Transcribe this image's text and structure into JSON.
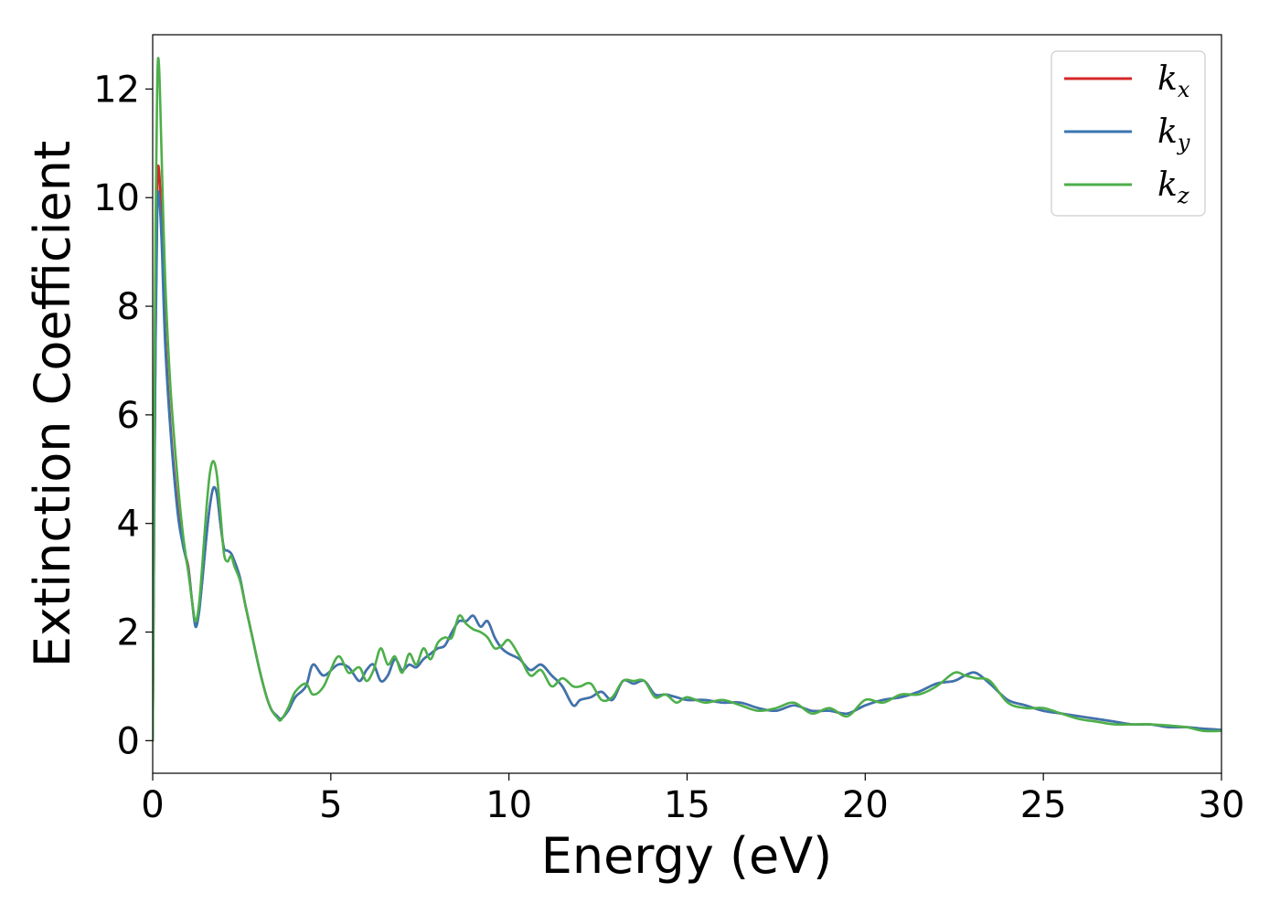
{
  "chart_data": {
    "type": "line",
    "xlabel": "Energy (eV)",
    "ylabel": "Extinction Coefficient",
    "xlim": [
      0,
      30
    ],
    "ylim": [
      -0.6,
      13.0
    ],
    "xticks": [
      0,
      5,
      10,
      15,
      20,
      25,
      30
    ],
    "xtick_labels": [
      "0",
      "5",
      "10",
      "15",
      "20",
      "25",
      "30"
    ],
    "yticks": [
      0,
      2,
      4,
      6,
      8,
      10,
      12
    ],
    "ytick_labels": [
      "0",
      "2",
      "4",
      "6",
      "8",
      "10",
      "12"
    ],
    "grid": false,
    "legend_position": "top-right",
    "series": [
      {
        "key": "kx",
        "name": "k",
        "subscript": "x",
        "color": "#d62728",
        "x": [
          0,
          0.03,
          0.08,
          0.13,
          0.18,
          0.25,
          0.35,
          0.5,
          0.7,
          0.85,
          1.0,
          1.1,
          1.2,
          1.3,
          1.4,
          1.5,
          1.6,
          1.7,
          1.8,
          1.9,
          2.0,
          2.1,
          2.2,
          2.3,
          2.45,
          2.6,
          2.8,
          3.0,
          3.2,
          3.35,
          3.5,
          3.6,
          3.8,
          4.0,
          4.3,
          4.5,
          4.8,
          5.2,
          5.5,
          5.8,
          6.0,
          6.2,
          6.4,
          6.6,
          6.8,
          7.0,
          7.2,
          7.4,
          7.6,
          7.8,
          8.0,
          8.2,
          8.4,
          8.6,
          8.8,
          9.0,
          9.2,
          9.4,
          9.6,
          9.8,
          10.0,
          10.3,
          10.6,
          10.9,
          11.2,
          11.5,
          11.8,
          12.0,
          12.3,
          12.6,
          12.9,
          13.2,
          13.5,
          13.8,
          14.1,
          14.4,
          14.7,
          15.0,
          15.5,
          16.0,
          16.5,
          17.0,
          17.5,
          18.0,
          18.5,
          19.0,
          19.5,
          20.0,
          20.5,
          21.0,
          21.5,
          22.0,
          22.5,
          22.8,
          23.1,
          23.5,
          24.0,
          24.5,
          25.0,
          25.5,
          26.0,
          26.5,
          27.0,
          27.5,
          28.0,
          28.5,
          29.0,
          29.5,
          30.0
        ],
        "values": [
          0,
          3.0,
          7.5,
          10.2,
          10.5,
          9.5,
          7.5,
          5.8,
          4.3,
          3.6,
          3.2,
          2.6,
          2.15,
          2.4,
          3.0,
          3.7,
          4.3,
          4.65,
          4.55,
          4.0,
          3.55,
          3.5,
          3.45,
          3.3,
          3.0,
          2.5,
          1.9,
          1.3,
          0.8,
          0.55,
          0.45,
          0.4,
          0.55,
          0.8,
          1.0,
          1.4,
          1.2,
          1.4,
          1.35,
          1.1,
          1.3,
          1.4,
          1.1,
          1.2,
          1.5,
          1.3,
          1.4,
          1.35,
          1.5,
          1.6,
          1.7,
          1.75,
          2.0,
          2.2,
          2.2,
          2.3,
          2.1,
          2.2,
          1.9,
          1.7,
          1.6,
          1.5,
          1.3,
          1.4,
          1.2,
          1.0,
          0.65,
          0.75,
          0.8,
          0.9,
          0.75,
          1.1,
          1.05,
          1.1,
          0.85,
          0.85,
          0.8,
          0.75,
          0.75,
          0.7,
          0.7,
          0.6,
          0.55,
          0.65,
          0.55,
          0.55,
          0.5,
          0.65,
          0.75,
          0.8,
          0.9,
          1.05,
          1.1,
          1.2,
          1.25,
          1.05,
          0.75,
          0.65,
          0.55,
          0.5,
          0.45,
          0.4,
          0.35,
          0.3,
          0.3,
          0.25,
          0.25,
          0.22,
          0.2
        ]
      },
      {
        "key": "ky",
        "name": "k",
        "subscript": "y",
        "color": "#3a75b0",
        "x": [
          0,
          0.03,
          0.08,
          0.13,
          0.18,
          0.25,
          0.35,
          0.5,
          0.7,
          0.85,
          1.0,
          1.1,
          1.2,
          1.3,
          1.4,
          1.5,
          1.6,
          1.7,
          1.8,
          1.9,
          2.0,
          2.1,
          2.2,
          2.3,
          2.45,
          2.6,
          2.8,
          3.0,
          3.2,
          3.35,
          3.5,
          3.6,
          3.8,
          4.0,
          4.3,
          4.5,
          4.8,
          5.2,
          5.5,
          5.8,
          6.0,
          6.2,
          6.4,
          6.6,
          6.8,
          7.0,
          7.2,
          7.4,
          7.6,
          7.8,
          8.0,
          8.2,
          8.4,
          8.6,
          8.8,
          9.0,
          9.2,
          9.4,
          9.6,
          9.8,
          10.0,
          10.3,
          10.6,
          10.9,
          11.2,
          11.5,
          11.8,
          12.0,
          12.3,
          12.6,
          12.9,
          13.2,
          13.5,
          13.8,
          14.1,
          14.4,
          14.7,
          15.0,
          15.5,
          16.0,
          16.5,
          17.0,
          17.5,
          18.0,
          18.5,
          19.0,
          19.5,
          20.0,
          20.5,
          21.0,
          21.5,
          22.0,
          22.5,
          22.8,
          23.1,
          23.5,
          24.0,
          24.5,
          25.0,
          25.5,
          26.0,
          26.5,
          27.0,
          27.5,
          28.0,
          28.5,
          29.0,
          29.5,
          30.0
        ],
        "values": [
          0,
          2.8,
          7.2,
          9.8,
          10.0,
          9.2,
          7.3,
          5.7,
          4.2,
          3.6,
          3.15,
          2.6,
          2.1,
          2.35,
          3.0,
          3.7,
          4.3,
          4.65,
          4.55,
          4.0,
          3.55,
          3.5,
          3.45,
          3.3,
          3.0,
          2.5,
          1.9,
          1.3,
          0.8,
          0.55,
          0.45,
          0.4,
          0.55,
          0.8,
          1.0,
          1.4,
          1.2,
          1.4,
          1.35,
          1.1,
          1.3,
          1.4,
          1.1,
          1.2,
          1.5,
          1.3,
          1.4,
          1.35,
          1.5,
          1.6,
          1.7,
          1.75,
          2.0,
          2.2,
          2.2,
          2.3,
          2.1,
          2.2,
          1.9,
          1.7,
          1.6,
          1.5,
          1.3,
          1.4,
          1.2,
          1.0,
          0.65,
          0.75,
          0.8,
          0.9,
          0.75,
          1.1,
          1.05,
          1.1,
          0.85,
          0.85,
          0.8,
          0.75,
          0.75,
          0.7,
          0.7,
          0.6,
          0.55,
          0.65,
          0.55,
          0.55,
          0.5,
          0.65,
          0.75,
          0.8,
          0.9,
          1.05,
          1.1,
          1.2,
          1.25,
          1.05,
          0.75,
          0.65,
          0.55,
          0.5,
          0.45,
          0.4,
          0.35,
          0.3,
          0.3,
          0.25,
          0.25,
          0.22,
          0.2
        ]
      },
      {
        "key": "kz",
        "name": "k",
        "subscript": "z",
        "color": "#4daf4a",
        "x": [
          0,
          0.03,
          0.08,
          0.13,
          0.18,
          0.25,
          0.35,
          0.5,
          0.7,
          0.85,
          1.0,
          1.1,
          1.2,
          1.3,
          1.4,
          1.5,
          1.6,
          1.7,
          1.8,
          1.9,
          2.0,
          2.1,
          2.2,
          2.3,
          2.45,
          2.6,
          2.8,
          3.0,
          3.2,
          3.35,
          3.5,
          3.6,
          3.8,
          4.0,
          4.3,
          4.5,
          4.8,
          5.2,
          5.5,
          5.8,
          6.0,
          6.2,
          6.4,
          6.6,
          6.8,
          7.0,
          7.2,
          7.4,
          7.6,
          7.8,
          8.0,
          8.2,
          8.4,
          8.6,
          8.8,
          9.0,
          9.2,
          9.4,
          9.6,
          9.8,
          10.0,
          10.3,
          10.6,
          10.9,
          11.2,
          11.5,
          11.8,
          12.0,
          12.3,
          12.6,
          12.9,
          13.2,
          13.5,
          13.8,
          14.1,
          14.4,
          14.7,
          15.0,
          15.5,
          16.0,
          16.5,
          17.0,
          17.5,
          18.0,
          18.5,
          19.0,
          19.5,
          20.0,
          20.5,
          21.0,
          21.5,
          22.0,
          22.5,
          22.8,
          23.1,
          23.5,
          24.0,
          24.5,
          25.0,
          25.5,
          26.0,
          26.5,
          27.0,
          27.5,
          28.0,
          28.5,
          29.0,
          29.5,
          30.0
        ],
        "values": [
          0,
          4.0,
          9.5,
          12.2,
          12.4,
          10.8,
          8.5,
          6.5,
          4.8,
          3.8,
          3.1,
          2.6,
          2.2,
          2.5,
          3.3,
          4.2,
          4.9,
          5.15,
          4.9,
          4.2,
          3.45,
          3.3,
          3.4,
          3.2,
          2.95,
          2.5,
          1.9,
          1.3,
          0.8,
          0.55,
          0.42,
          0.38,
          0.6,
          0.9,
          1.05,
          0.85,
          1.0,
          1.55,
          1.25,
          1.35,
          1.1,
          1.3,
          1.7,
          1.4,
          1.55,
          1.25,
          1.6,
          1.4,
          1.7,
          1.5,
          1.8,
          1.9,
          1.9,
          2.3,
          2.15,
          2.05,
          2.0,
          1.9,
          1.7,
          1.75,
          1.85,
          1.55,
          1.2,
          1.3,
          1.0,
          1.15,
          1.0,
          1.0,
          1.05,
          0.75,
          0.8,
          1.1,
          1.1,
          1.1,
          0.8,
          0.85,
          0.7,
          0.8,
          0.7,
          0.75,
          0.65,
          0.55,
          0.6,
          0.7,
          0.5,
          0.6,
          0.45,
          0.75,
          0.7,
          0.85,
          0.85,
          1.0,
          1.25,
          1.2,
          1.15,
          1.1,
          0.7,
          0.6,
          0.6,
          0.5,
          0.4,
          0.35,
          0.3,
          0.3,
          0.3,
          0.28,
          0.25,
          0.18,
          0.18
        ]
      }
    ]
  }
}
